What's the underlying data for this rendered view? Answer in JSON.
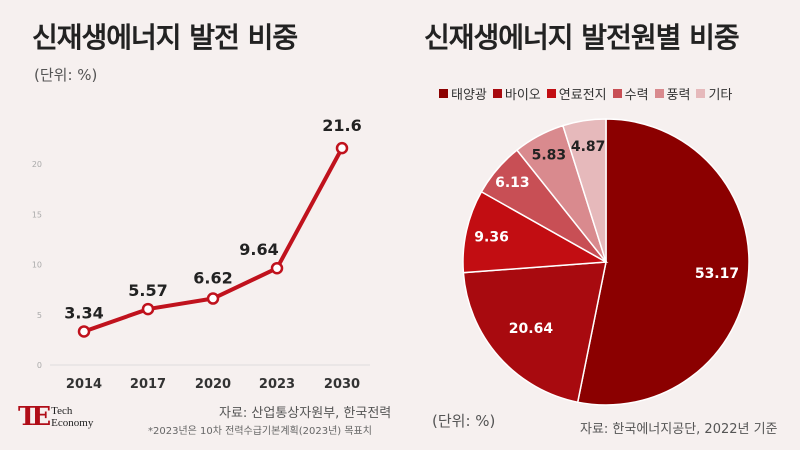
{
  "left_chart": {
    "title": "신재생에너지 발전 비중",
    "unit": "(단위: %)",
    "source": "자료: 산업통상자원부, 한국전력",
    "note": "*2023년은 10차 전력수급기본계획(2023년) 목표치"
  },
  "right_chart": {
    "title": "신재생에너지 발전원별 비중",
    "unit": "(단위: %)",
    "source": "자료: 한국에너지공단, 2022년 기준"
  },
  "logo": {
    "mark": "TE",
    "line1": "Tech",
    "line2": "Economy"
  },
  "colors": {
    "background": "#f6f0ef",
    "line": "#c0121d",
    "pie": [
      "#8b0000",
      "#a80a0f",
      "#c20d12",
      "#c84f55",
      "#d98a8e",
      "#e6b9bb"
    ]
  },
  "chart_data": [
    {
      "type": "line",
      "categories": [
        "2014",
        "2017",
        "2020",
        "2023",
        "2030"
      ],
      "values": [
        3.34,
        5.57,
        6.62,
        9.64,
        21.6
      ],
      "data_labels": [
        "3.34",
        "5.57",
        "6.62",
        "9.64",
        "21.6"
      ],
      "y_ticks": [
        "0",
        "5",
        "10",
        "15",
        "20"
      ],
      "ylim": [
        0,
        25
      ],
      "grid": false,
      "title": "신재생에너지 발전 비중"
    },
    {
      "type": "pie",
      "categories": [
        "태양광",
        "바이오",
        "연료전지",
        "수력",
        "풍력",
        "기타"
      ],
      "values": [
        53.17,
        20.64,
        9.36,
        6.13,
        5.83,
        4.87
      ],
      "data_labels": [
        "53.17",
        "20.64",
        "9.36",
        "6.13",
        "5.83",
        "4.87"
      ],
      "legend": "top",
      "title": "신재생에너지 발전원별 비중"
    }
  ]
}
